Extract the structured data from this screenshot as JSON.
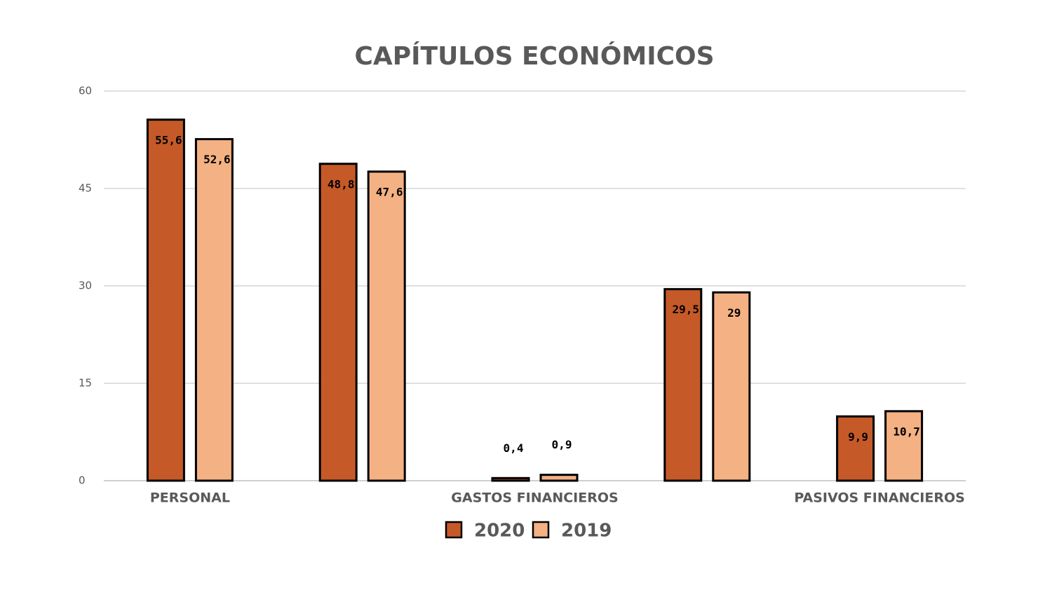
{
  "chart_data": {
    "type": "bar",
    "title": "CAPÍTULOS ECONÓMICOS",
    "categories": [
      "PERSONAL",
      null,
      "GASTOS FINANCIEROS",
      null,
      "PASIVOS FINANCIEROS"
    ],
    "series": [
      {
        "name": "2020",
        "color": "#c55a28",
        "values": [
          55.6,
          48.8,
          0.4,
          29.5,
          9.9
        ],
        "value_labels": [
          "55,6",
          "48,8",
          "0,4",
          "29,5",
          "9,9"
        ]
      },
      {
        "name": "2019",
        "color": "#f4b183",
        "values": [
          52.6,
          47.6,
          0.9,
          29,
          10.7
        ],
        "value_labels": [
          "52,6",
          "47,6",
          "0,9",
          "29",
          "10,7"
        ]
      }
    ],
    "ylim": [
      0,
      60
    ],
    "yticks": [
      0,
      15,
      30,
      45,
      60
    ],
    "grid": true,
    "legend": "bottom"
  }
}
